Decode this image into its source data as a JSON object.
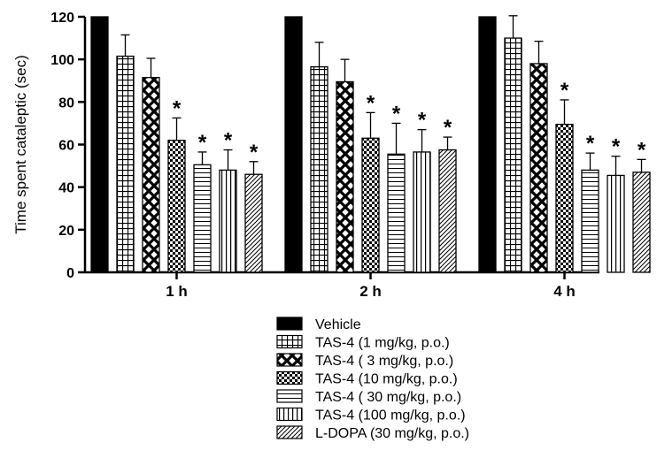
{
  "chart_data": {
    "type": "bar",
    "ylabel": "Time spent cataleptic (sec)",
    "xlabel": "",
    "ylim": [
      0,
      120
    ],
    "yticks": [
      0,
      20,
      40,
      60,
      80,
      100,
      120
    ],
    "categories": [
      "1 h",
      "2 h",
      "4 h"
    ],
    "legend_position": "bottom",
    "significance_marker": "*",
    "series": [
      {
        "name": "Vehicle",
        "pattern": "solid",
        "values": [
          120,
          120,
          120
        ],
        "errors": [
          0,
          0,
          0
        ],
        "significant": [
          false,
          false,
          false
        ]
      },
      {
        "name": "TAS-4 (1 mg/kg, p.o.)",
        "pattern": "grid",
        "values": [
          101.5,
          96.5,
          110
        ],
        "errors": [
          10,
          11.5,
          10.5
        ],
        "significant": [
          false,
          false,
          false
        ]
      },
      {
        "name": "TAS-4 ( 3 mg/kg, p.o.)",
        "pattern": "crosshatch",
        "values": [
          91.5,
          89.5,
          98
        ],
        "errors": [
          9,
          10.5,
          10.5
        ],
        "significant": [
          false,
          false,
          false
        ]
      },
      {
        "name": "TAS-4 (10 mg/kg, p.o.)",
        "pattern": "checker",
        "values": [
          62,
          63,
          69.5
        ],
        "errors": [
          10.5,
          12,
          11.5
        ],
        "significant": [
          true,
          true,
          true
        ]
      },
      {
        "name": "TAS-4 ( 30 mg/kg, p.o.)",
        "pattern": "horizontal",
        "values": [
          50.5,
          55.5,
          48
        ],
        "errors": [
          6,
          14.5,
          8
        ],
        "significant": [
          true,
          true,
          true
        ]
      },
      {
        "name": "TAS-4 (100 mg/kg, p.o.)",
        "pattern": "vertical",
        "values": [
          48,
          56.5,
          45.5
        ],
        "errors": [
          9.5,
          10.5,
          9
        ],
        "significant": [
          true,
          true,
          true
        ]
      },
      {
        "name": "L-DOPA (30 mg/kg, p.o.)",
        "pattern": "diagonal",
        "values": [
          46,
          57.5,
          47
        ],
        "errors": [
          6,
          6,
          6
        ],
        "significant": [
          true,
          true,
          true
        ]
      }
    ]
  }
}
